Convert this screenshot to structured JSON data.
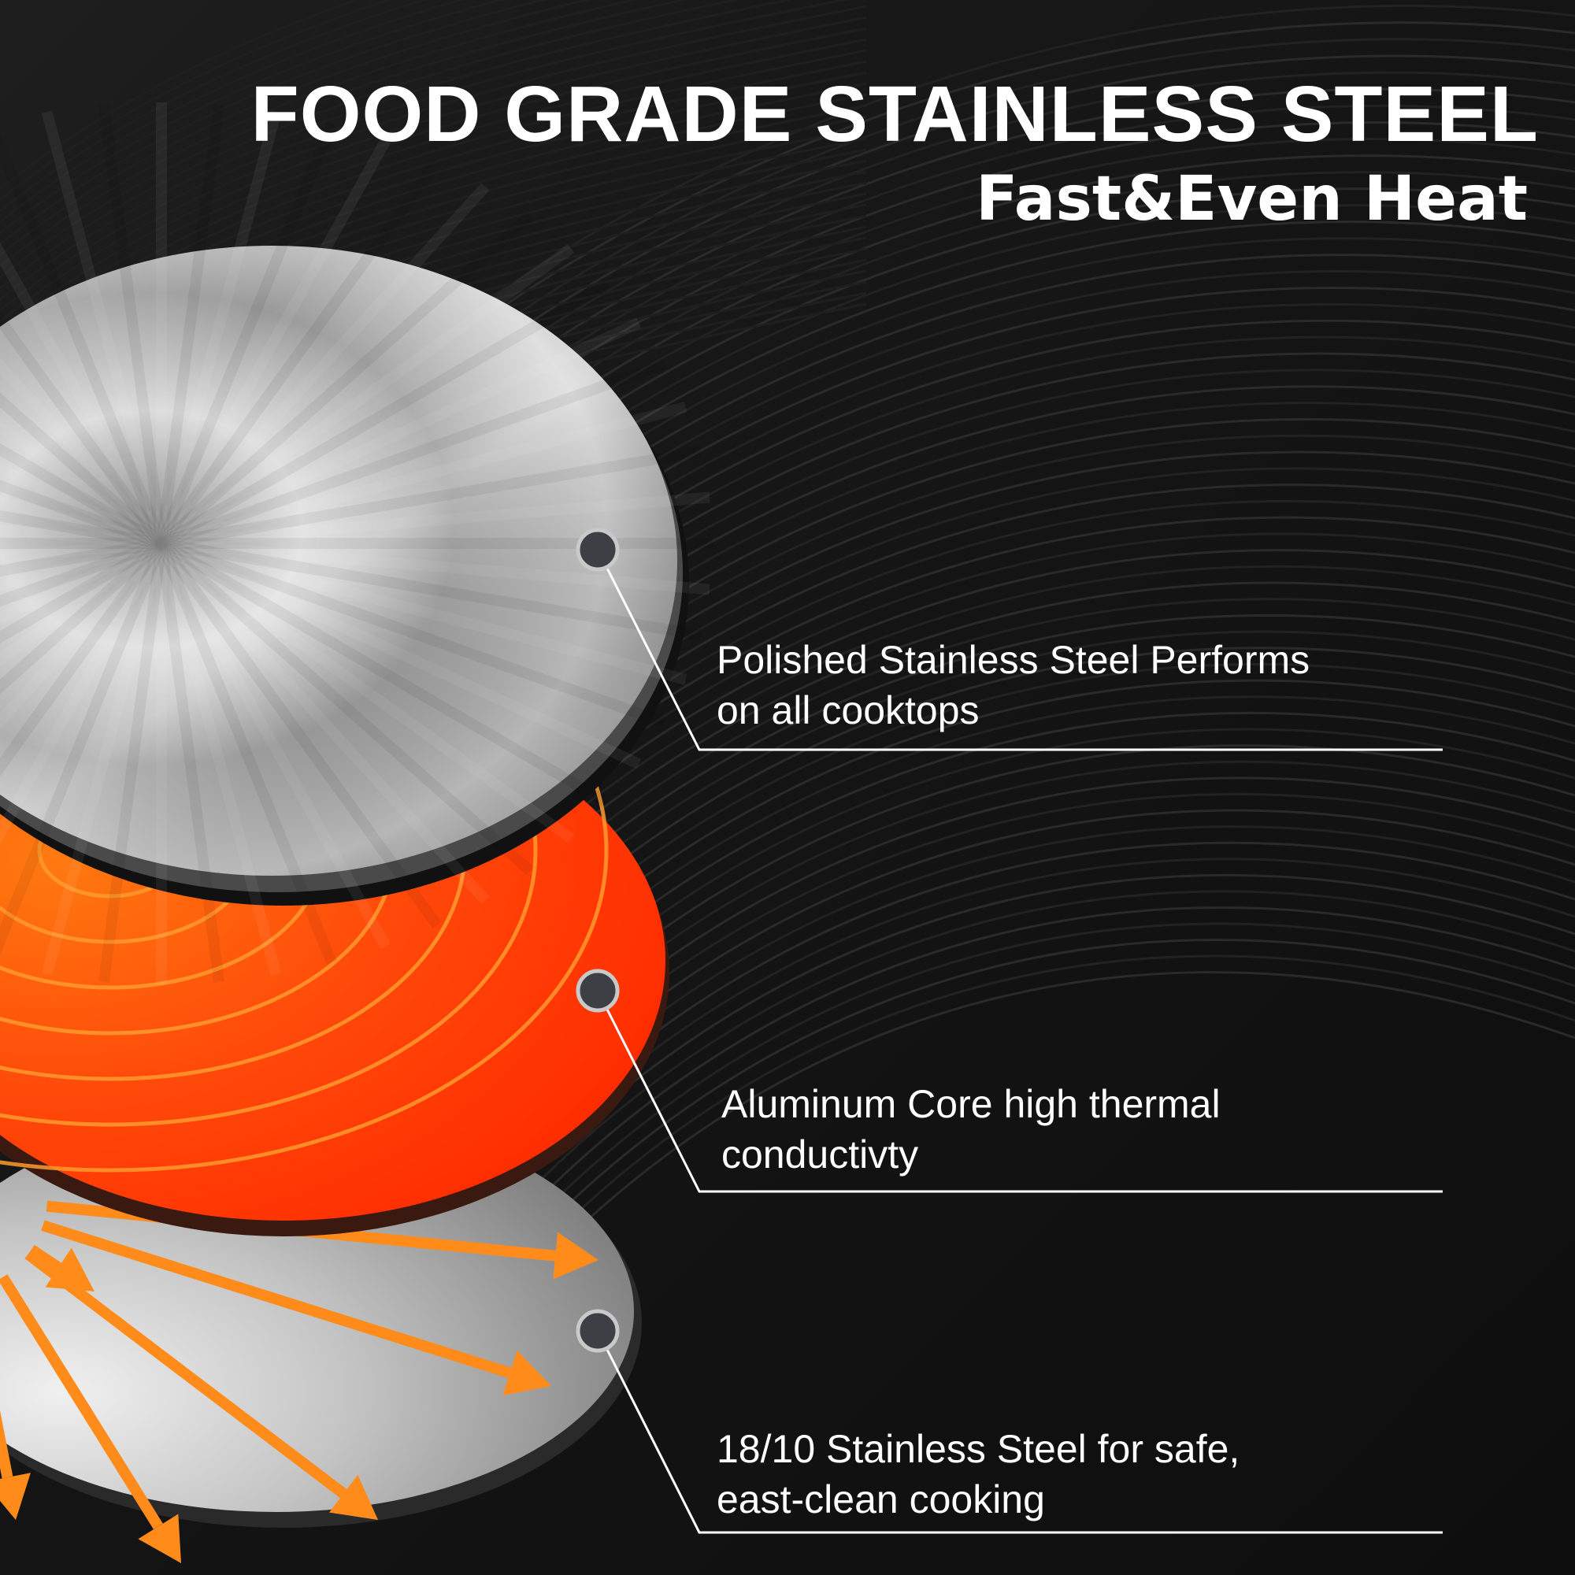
{
  "header": {
    "title": "FOOD GRADE STAINLESS STEEL",
    "subtitle": "Fast&Even Heat"
  },
  "callouts": [
    {
      "line1": "Polished Stainless Steel Performs",
      "line2": "on all cooktops"
    },
    {
      "line1": "Aluminum Core high thermal",
      "line2": "conductivty"
    },
    {
      "line1": "18/10 Stainless Steel for safe,",
      "line2": "east-clean cooking"
    }
  ],
  "layers": [
    {
      "name": "polished-stainless-steel-layer",
      "color": "#c8c8c8"
    },
    {
      "name": "aluminum-core-layer",
      "color": "#ff4a0a"
    },
    {
      "name": "stainless-steel-base-layer",
      "color": "#bdbdbd"
    }
  ],
  "colors": {
    "background": "#121212",
    "text": "#ffffff",
    "heat_ring": "#ff9a2e",
    "arrow": "#ff8c1a",
    "marker_fill": "#3c3f43",
    "marker_ring": "#c9c9c9"
  }
}
